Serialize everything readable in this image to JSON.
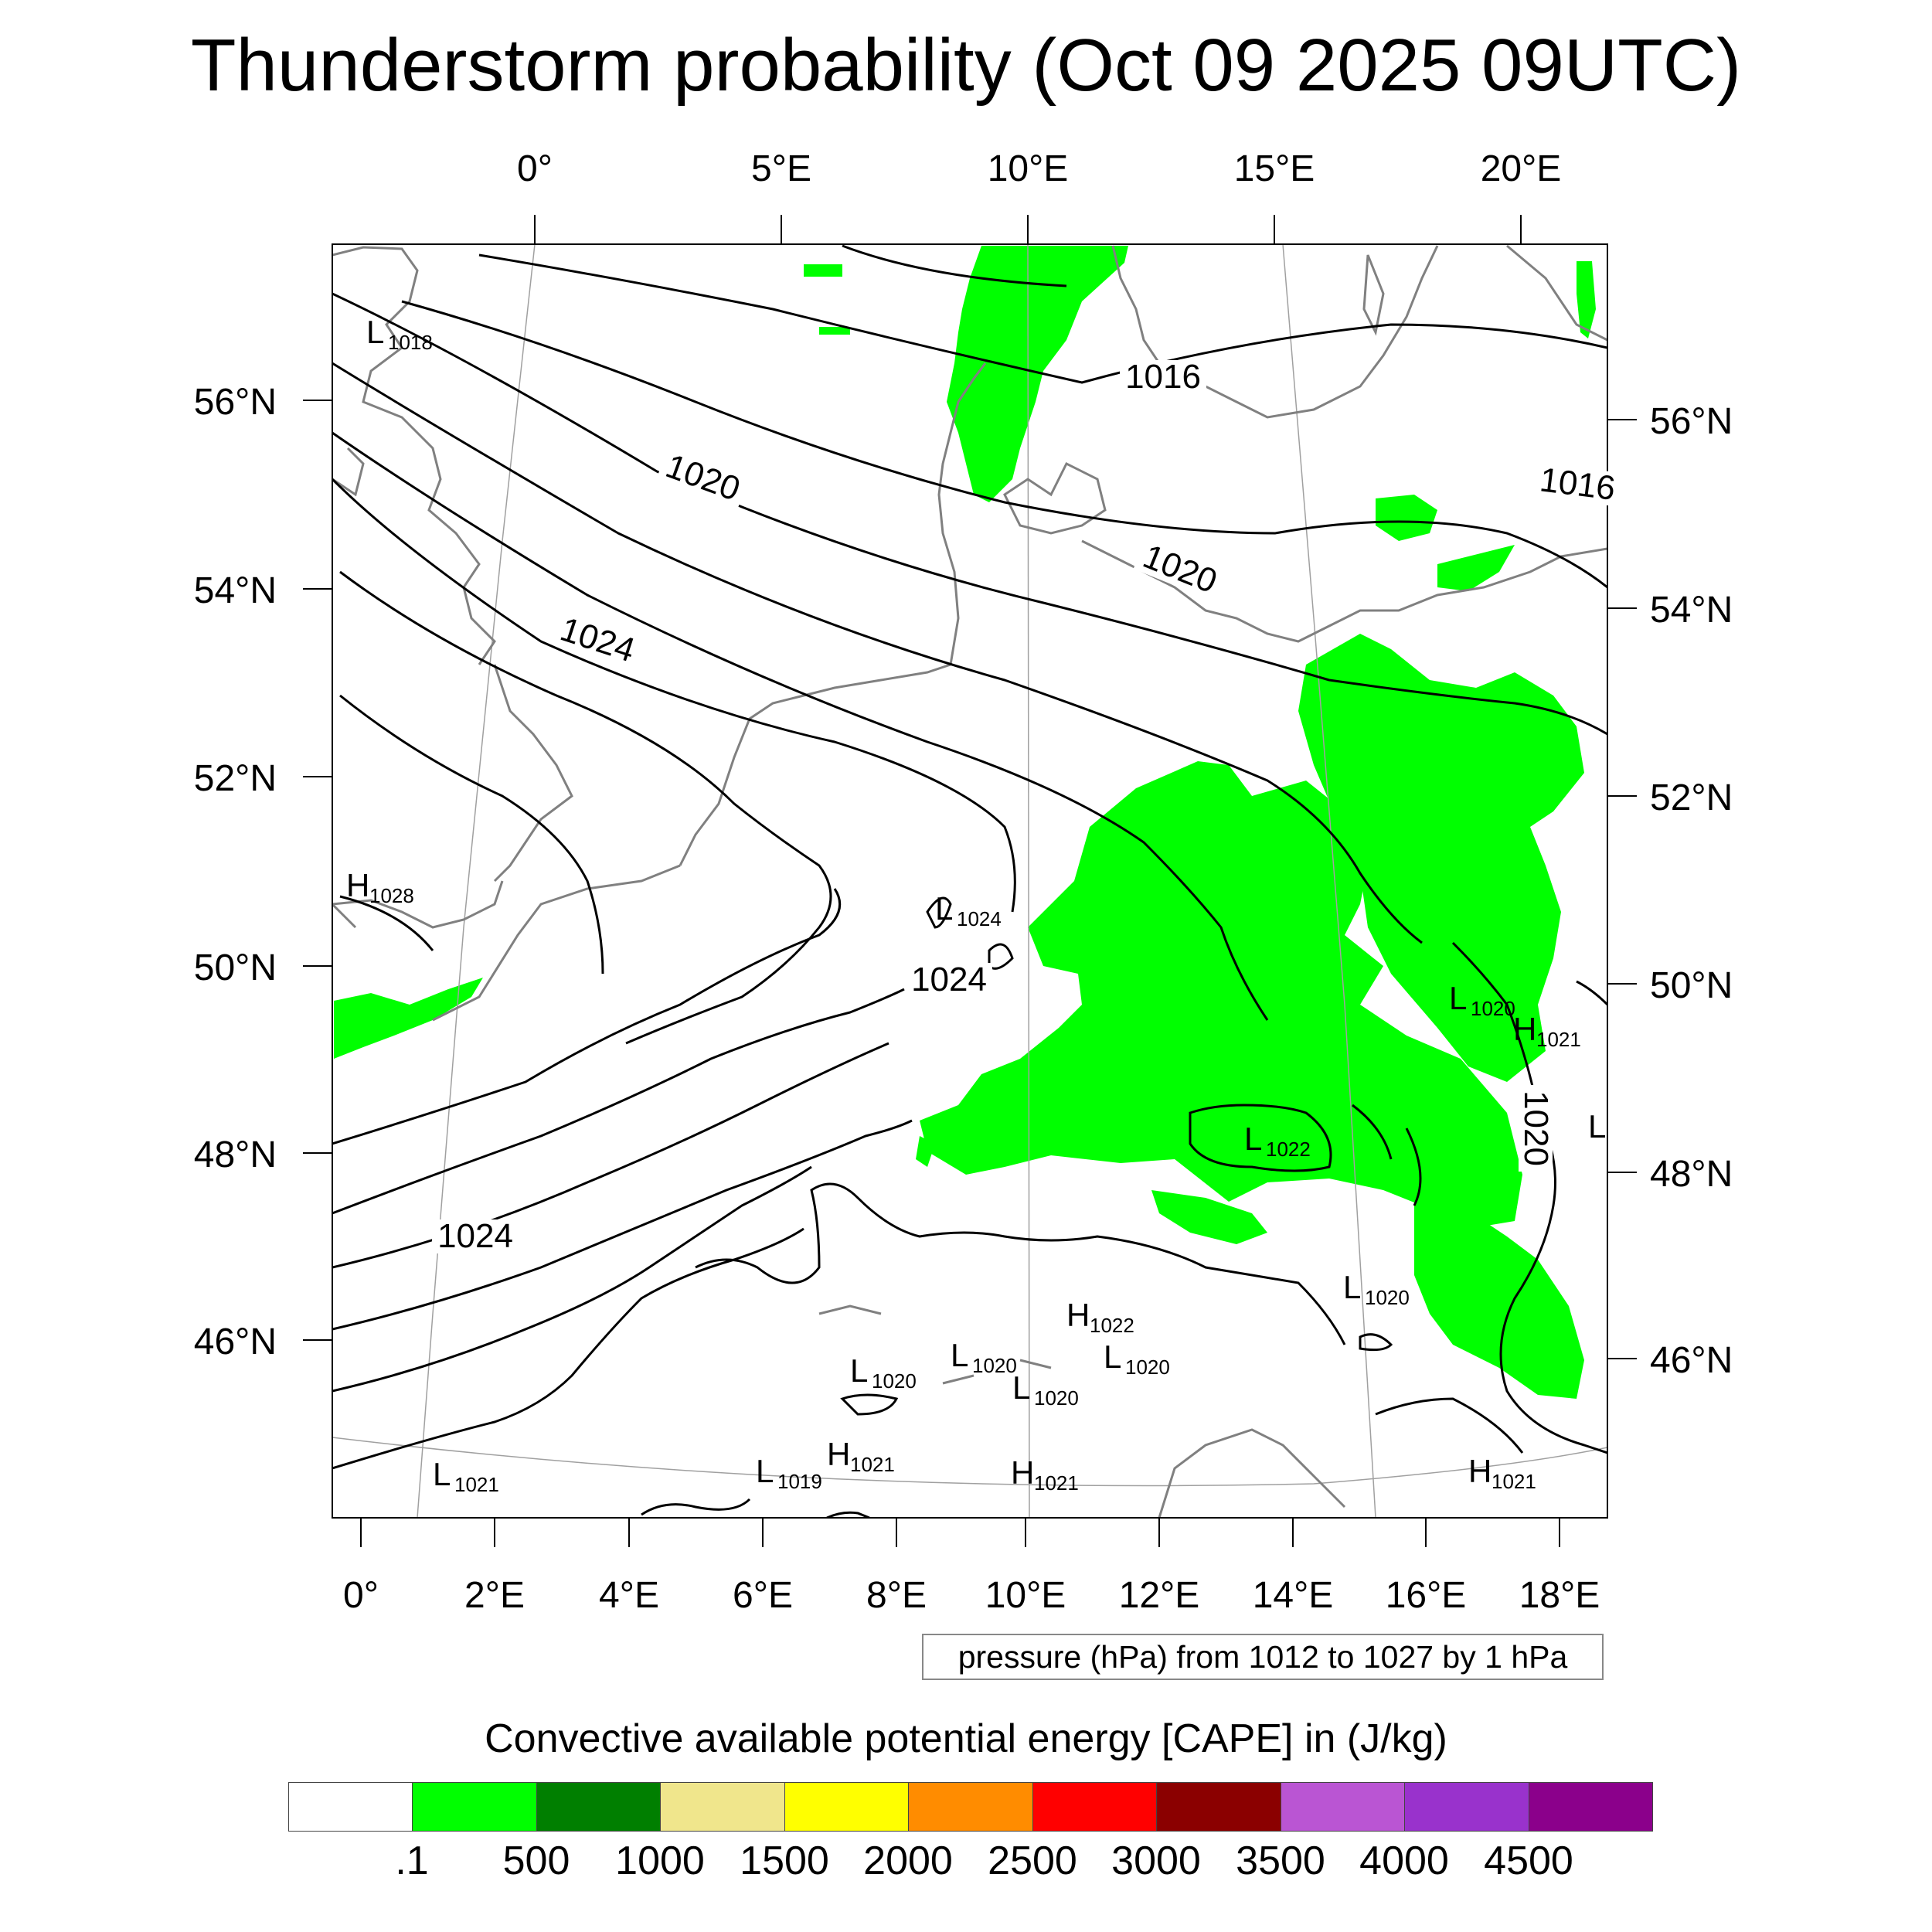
{
  "title": "Thunderstorm probability (Oct 09 2025 09UTC)",
  "axes": {
    "top_lon": [
      "0°",
      "5°E",
      "10°E",
      "15°E",
      "20°E"
    ],
    "bottom_lon": [
      "0°",
      "2°E",
      "4°E",
      "6°E",
      "8°E",
      "10°E",
      "12°E",
      "14°E",
      "16°E",
      "18°E"
    ],
    "left_lat": [
      "56°N",
      "54°N",
      "52°N",
      "50°N",
      "48°N",
      "46°N"
    ],
    "right_lat": [
      "56°N",
      "54°N",
      "52°N",
      "50°N",
      "48°N",
      "46°N"
    ]
  },
  "isobar_labels": [
    "1016",
    "1016",
    "1020",
    "1020",
    "1020",
    "1024",
    "1024",
    "1024"
  ],
  "pressure_centers": [
    {
      "type": "L",
      "value": "1018"
    },
    {
      "type": "H",
      "value": "1028"
    },
    {
      "type": "L",
      "value": "1024"
    },
    {
      "type": "L",
      "value": "1020"
    },
    {
      "type": "H",
      "value": "1021"
    },
    {
      "type": "L",
      "value": "1022"
    },
    {
      "type": "L",
      "value": "1020"
    },
    {
      "type": "H",
      "value": "1022"
    },
    {
      "type": "L",
      "value": "1020"
    },
    {
      "type": "L",
      "value": "1020"
    },
    {
      "type": "L",
      "value": "1020"
    },
    {
      "type": "L",
      "value": "1020"
    },
    {
      "type": "L",
      "value": "1021"
    },
    {
      "type": "L",
      "value": "1019"
    },
    {
      "type": "H",
      "value": "1021"
    },
    {
      "type": "H",
      "value": "1021"
    },
    {
      "type": "H",
      "value": "1021"
    },
    {
      "type": "L",
      "value": ""
    }
  ],
  "contour_note": "pressure (hPa) from 1012 to 1027 by 1 hPa",
  "colorbar": {
    "title": "Convective available potential energy [CAPE] in (J/kg)",
    "colors": [
      "#FFFFFF",
      "#00FF00",
      "#007F00",
      "#F0E68C",
      "#FFFF00",
      "#FF8C00",
      "#FF0000",
      "#8B0000",
      "#BA55D3",
      "#9932CC",
      "#8B008B"
    ],
    "labels": [
      ".1",
      "500",
      "1000",
      "1500",
      "2000",
      "2500",
      "3000",
      "3500",
      "4000",
      "4500"
    ]
  },
  "style": {
    "cape_fill": "#00FF00",
    "isobar_color": "#000000",
    "coast_color": "#808080",
    "graticule_color": "#A0A0A0"
  }
}
